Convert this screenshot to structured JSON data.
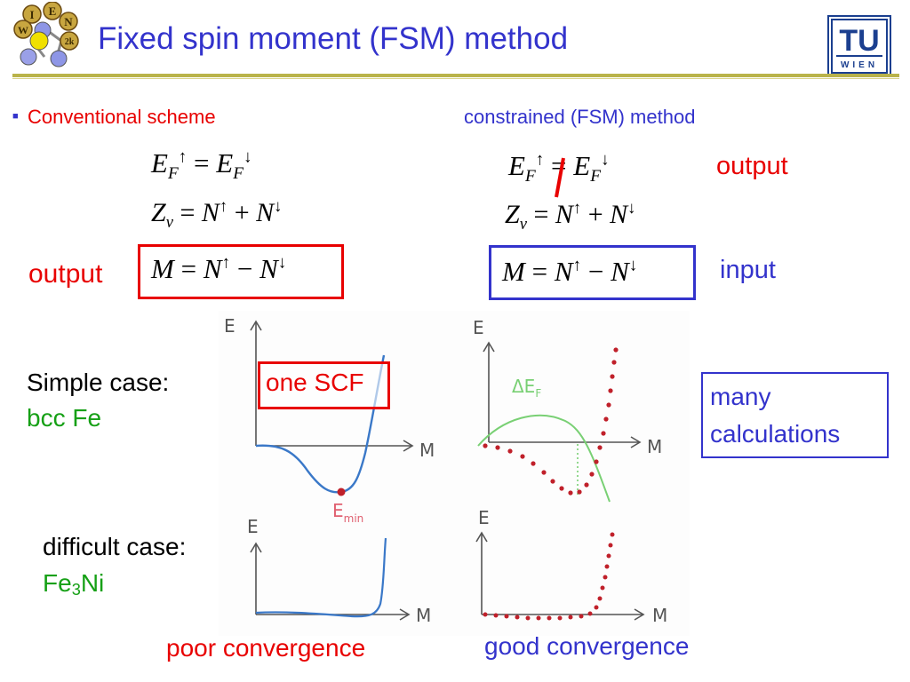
{
  "slide": {
    "title": "Fixed spin moment (FSM) method",
    "bullet_mark": "■",
    "conventional_label": "Conventional scheme",
    "constrained_label": "constrained (FSM) method",
    "output_label_left": "output",
    "output_label_right": "output",
    "input_label": "input",
    "simple_case_label": "Simple case:",
    "simple_case_material": "bcc Fe",
    "difficult_case_label": "difficult case:",
    "difficult_case_material_prefix": "Fe",
    "difficult_case_material_sub": "3",
    "difficult_case_material_suffix": "Ni",
    "one_scf_label": "one SCF",
    "many_calculations_line1": "many",
    "many_calculations_line2": "calculations",
    "poor_convergence_label": "poor convergence",
    "good_convergence_label": "good convergence",
    "sketch_axis_e": "E",
    "sketch_axis_m": "M",
    "sketch_emin": "E",
    "sketch_emin_sub": "min",
    "sketch_delta_ef": "ΔE",
    "sketch_delta_ef_sub": "F"
  },
  "logos": {
    "left_logo_letters": [
      "I",
      "E",
      "N",
      "W",
      "2k"
    ],
    "right_logo_top": "TU",
    "right_logo_bottom": "WIEN"
  },
  "colors": {
    "title": "#3333cc",
    "rule": "#b9b34a",
    "red": "#e80000",
    "blue": "#3333cc",
    "green": "#16a016",
    "sketch_blue": "#3a78c8",
    "sketch_green": "#79d074",
    "sketch_red_dots": "#c0202a"
  }
}
